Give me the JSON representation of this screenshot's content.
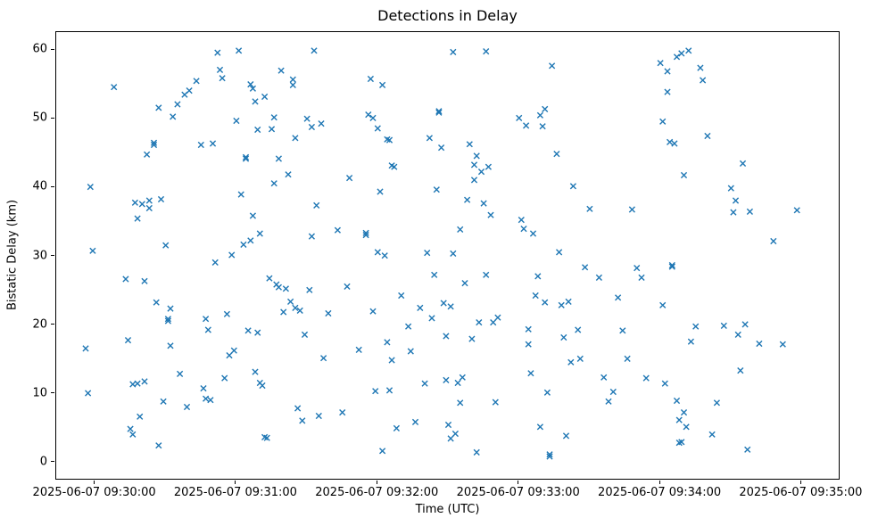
{
  "chart_data": {
    "type": "scatter",
    "title": "Detections in Delay",
    "xlabel": "Time (UTC)",
    "ylabel": "Bistatic Delay (km)",
    "marker": "x",
    "marker_color": "#1f77b4",
    "grid": false,
    "legend": "none",
    "x_axis": {
      "unit": "seconds after 2025-06-07 09:30:00 UTC",
      "lim": [
        -16.5,
        316.5
      ],
      "ticks": [
        {
          "t": 0,
          "label": "2025-06-07 09:30:00"
        },
        {
          "t": 60,
          "label": "2025-06-07 09:31:00"
        },
        {
          "t": 120,
          "label": "2025-06-07 09:32:00"
        },
        {
          "t": 180,
          "label": "2025-06-07 09:33:00"
        },
        {
          "t": 240,
          "label": "2025-06-07 09:34:00"
        },
        {
          "t": 300,
          "label": "2025-06-07 09:35:00"
        }
      ]
    },
    "y_axis": {
      "lim": [
        -2.6,
        62.6
      ],
      "ticks": [
        {
          "v": 0,
          "label": "0"
        },
        {
          "v": 10,
          "label": "10"
        },
        {
          "v": 20,
          "label": "20"
        },
        {
          "v": 30,
          "label": "30"
        },
        {
          "v": 40,
          "label": "40"
        },
        {
          "v": 50,
          "label": "50"
        },
        {
          "v": 60,
          "label": "60"
        }
      ]
    },
    "points": [
      [
        -4,
        16.6
      ],
      [
        -3,
        10.1
      ],
      [
        -2,
        40.1
      ],
      [
        -1,
        30.8
      ],
      [
        8,
        54.6
      ],
      [
        13,
        26.7
      ],
      [
        14,
        17.8
      ],
      [
        15,
        4.9
      ],
      [
        16,
        11.4
      ],
      [
        16,
        4.1
      ],
      [
        17,
        37.8
      ],
      [
        18,
        35.5
      ],
      [
        18,
        11.5
      ],
      [
        19,
        6.7
      ],
      [
        20,
        37.6
      ],
      [
        21,
        26.4
      ],
      [
        21,
        11.8
      ],
      [
        22,
        44.8
      ],
      [
        23,
        38.1
      ],
      [
        23,
        37.0
      ],
      [
        25,
        46.5
      ],
      [
        25,
        46.2
      ],
      [
        26,
        23.3
      ],
      [
        27,
        51.6
      ],
      [
        27,
        2.5
      ],
      [
        28,
        38.3
      ],
      [
        29,
        8.9
      ],
      [
        30,
        31.6
      ],
      [
        31,
        20.9
      ],
      [
        31,
        20.6
      ],
      [
        32,
        22.4
      ],
      [
        32,
        17.0
      ],
      [
        33,
        50.3
      ],
      [
        35,
        52.1
      ],
      [
        36,
        12.9
      ],
      [
        38,
        53.5
      ],
      [
        39,
        8.1
      ],
      [
        40,
        54.1
      ],
      [
        43,
        55.5
      ],
      [
        45,
        46.2
      ],
      [
        46,
        10.8
      ],
      [
        47,
        20.9
      ],
      [
        47,
        9.3
      ],
      [
        48,
        19.3
      ],
      [
        49,
        9.1
      ],
      [
        50,
        46.4
      ],
      [
        51,
        29.1
      ],
      [
        52,
        59.6
      ],
      [
        53,
        57.1
      ],
      [
        54,
        55.9
      ],
      [
        55,
        12.3
      ],
      [
        56,
        21.6
      ],
      [
        57,
        15.6
      ],
      [
        58,
        30.2
      ],
      [
        59,
        16.3
      ],
      [
        60,
        49.7
      ],
      [
        61,
        59.9
      ],
      [
        62,
        39.0
      ],
      [
        63,
        31.7
      ],
      [
        64,
        44.4
      ],
      [
        64,
        44.2
      ],
      [
        65,
        19.2
      ],
      [
        66,
        55.0
      ],
      [
        66,
        32.3
      ],
      [
        67,
        54.4
      ],
      [
        67,
        35.9
      ],
      [
        68,
        52.5
      ],
      [
        68,
        13.2
      ],
      [
        69,
        48.4
      ],
      [
        69,
        18.9
      ],
      [
        70,
        33.3
      ],
      [
        70,
        11.6
      ],
      [
        71,
        11.2
      ],
      [
        72,
        53.2
      ],
      [
        72,
        3.7
      ],
      [
        73,
        3.6
      ],
      [
        74,
        26.8
      ],
      [
        75,
        48.5
      ],
      [
        76,
        50.2
      ],
      [
        76,
        40.6
      ],
      [
        77,
        25.9
      ],
      [
        78,
        44.2
      ],
      [
        78,
        25.5
      ],
      [
        79,
        57.0
      ],
      [
        80,
        21.9
      ],
      [
        81,
        25.3
      ],
      [
        82,
        41.9
      ],
      [
        83,
        23.4
      ],
      [
        84,
        55.7
      ],
      [
        84,
        54.9
      ],
      [
        85,
        47.2
      ],
      [
        85,
        22.5
      ],
      [
        86,
        7.9
      ],
      [
        87,
        22.1
      ],
      [
        88,
        6.1
      ],
      [
        89,
        18.6
      ],
      [
        90,
        50.0
      ],
      [
        91,
        25.1
      ],
      [
        92,
        48.8
      ],
      [
        92,
        32.9
      ],
      [
        93,
        59.9
      ],
      [
        94,
        37.4
      ],
      [
        95,
        6.8
      ],
      [
        96,
        49.3
      ],
      [
        97,
        15.2
      ],
      [
        99,
        21.7
      ],
      [
        103,
        33.8
      ],
      [
        105,
        7.3
      ],
      [
        107,
        25.6
      ],
      [
        108,
        41.4
      ],
      [
        112,
        16.4
      ],
      [
        115,
        33.4
      ],
      [
        115,
        33.1
      ],
      [
        116,
        50.6
      ],
      [
        117,
        55.8
      ],
      [
        118,
        50.1
      ],
      [
        118,
        22.0
      ],
      [
        119,
        10.4
      ],
      [
        120,
        48.6
      ],
      [
        120,
        30.6
      ],
      [
        121,
        39.4
      ],
      [
        122,
        54.9
      ],
      [
        122,
        1.7
      ],
      [
        123,
        30.1
      ],
      [
        124,
        47.0
      ],
      [
        124,
        17.5
      ],
      [
        125,
        46.9
      ],
      [
        125,
        10.5
      ],
      [
        126,
        43.2
      ],
      [
        126,
        14.9
      ],
      [
        127,
        43.0
      ],
      [
        128,
        5.0
      ],
      [
        130,
        24.3
      ],
      [
        133,
        19.8
      ],
      [
        134,
        16.2
      ],
      [
        136,
        5.9
      ],
      [
        138,
        22.5
      ],
      [
        140,
        11.5
      ],
      [
        141,
        30.5
      ],
      [
        142,
        47.2
      ],
      [
        143,
        21.0
      ],
      [
        144,
        27.3
      ],
      [
        145,
        39.7
      ],
      [
        146,
        51.1
      ],
      [
        146,
        50.9
      ],
      [
        147,
        45.8
      ],
      [
        148,
        23.2
      ],
      [
        149,
        18.4
      ],
      [
        149,
        12.0
      ],
      [
        150,
        5.5
      ],
      [
        151,
        22.7
      ],
      [
        151,
        3.5
      ],
      [
        152,
        59.7
      ],
      [
        152,
        30.4
      ],
      [
        153,
        4.2
      ],
      [
        154,
        11.6
      ],
      [
        155,
        33.9
      ],
      [
        155,
        8.7
      ],
      [
        156,
        12.4
      ],
      [
        157,
        26.1
      ],
      [
        158,
        38.2
      ],
      [
        159,
        46.3
      ],
      [
        160,
        18.0
      ],
      [
        161,
        43.3
      ],
      [
        161,
        41.1
      ],
      [
        162,
        44.6
      ],
      [
        162,
        1.5
      ],
      [
        163,
        20.4
      ],
      [
        164,
        42.3
      ],
      [
        165,
        37.7
      ],
      [
        166,
        59.8
      ],
      [
        166,
        27.3
      ],
      [
        167,
        43.0
      ],
      [
        168,
        36.0
      ],
      [
        169,
        20.4
      ],
      [
        170,
        8.8
      ],
      [
        171,
        21.1
      ],
      [
        180,
        50.1
      ],
      [
        181,
        35.3
      ],
      [
        182,
        34.0
      ],
      [
        183,
        49.0
      ],
      [
        184,
        19.4
      ],
      [
        184,
        17.2
      ],
      [
        185,
        13.0
      ],
      [
        186,
        33.3
      ],
      [
        187,
        24.3
      ],
      [
        188,
        27.1
      ],
      [
        189,
        50.5
      ],
      [
        189,
        5.2
      ],
      [
        190,
        48.9
      ],
      [
        191,
        51.4
      ],
      [
        191,
        23.3
      ],
      [
        192,
        10.2
      ],
      [
        193,
        1.2
      ],
      [
        193,
        0.9
      ],
      [
        194,
        57.7
      ],
      [
        196,
        44.9
      ],
      [
        197,
        30.6
      ],
      [
        198,
        22.9
      ],
      [
        199,
        18.2
      ],
      [
        200,
        3.9
      ],
      [
        201,
        23.4
      ],
      [
        202,
        14.6
      ],
      [
        203,
        40.2
      ],
      [
        205,
        19.3
      ],
      [
        206,
        15.1
      ],
      [
        208,
        28.4
      ],
      [
        210,
        36.9
      ],
      [
        214,
        26.9
      ],
      [
        216,
        12.4
      ],
      [
        218,
        8.9
      ],
      [
        220,
        10.3
      ],
      [
        222,
        24.0
      ],
      [
        224,
        19.2
      ],
      [
        226,
        15.1
      ],
      [
        228,
        36.8
      ],
      [
        230,
        28.3
      ],
      [
        232,
        26.9
      ],
      [
        234,
        12.3
      ],
      [
        240,
        58.1
      ],
      [
        241,
        49.6
      ],
      [
        241,
        22.9
      ],
      [
        242,
        11.5
      ],
      [
        243,
        56.9
      ],
      [
        243,
        53.9
      ],
      [
        244,
        46.6
      ],
      [
        245,
        28.7
      ],
      [
        245,
        28.5
      ],
      [
        246,
        46.4
      ],
      [
        247,
        59.0
      ],
      [
        247,
        9.0
      ],
      [
        248,
        6.2
      ],
      [
        248,
        2.9
      ],
      [
        249,
        59.5
      ],
      [
        249,
        3.0
      ],
      [
        250,
        41.8
      ],
      [
        250,
        7.3
      ],
      [
        251,
        5.2
      ],
      [
        252,
        59.9
      ],
      [
        253,
        17.6
      ],
      [
        255,
        19.8
      ],
      [
        257,
        57.4
      ],
      [
        258,
        55.6
      ],
      [
        260,
        47.5
      ],
      [
        262,
        4.1
      ],
      [
        264,
        8.7
      ],
      [
        267,
        19.9
      ],
      [
        270,
        39.9
      ],
      [
        271,
        36.4
      ],
      [
        272,
        38.1
      ],
      [
        273,
        18.6
      ],
      [
        274,
        13.4
      ],
      [
        275,
        43.5
      ],
      [
        276,
        20.1
      ],
      [
        277,
        1.9
      ],
      [
        278,
        36.5
      ],
      [
        282,
        17.3
      ],
      [
        288,
        32.2
      ],
      [
        292,
        17.2
      ],
      [
        298,
        36.7
      ]
    ]
  }
}
